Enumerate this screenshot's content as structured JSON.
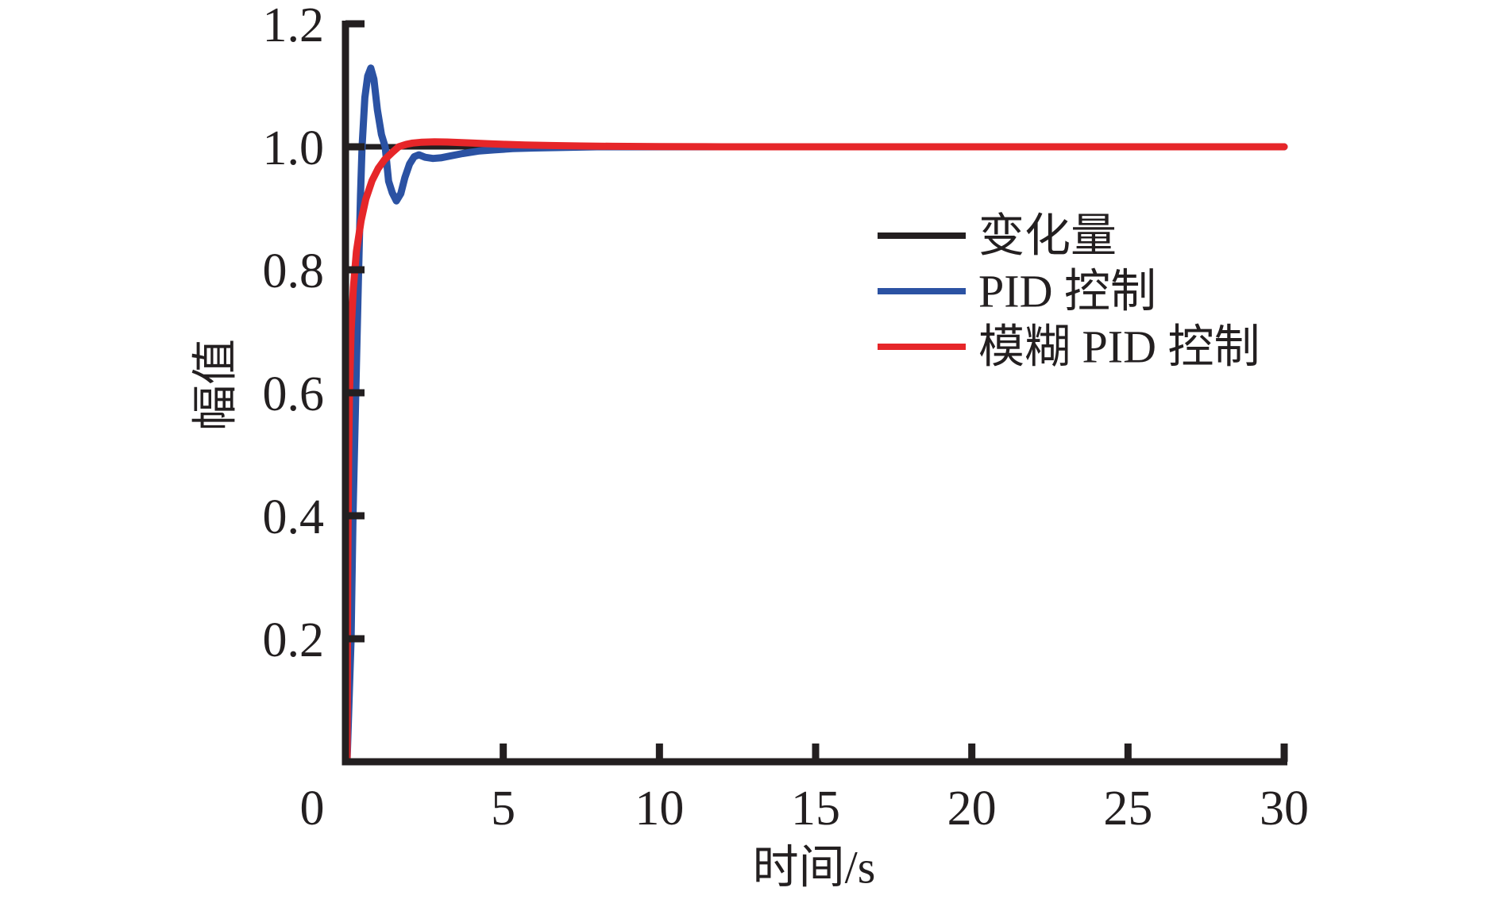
{
  "figure": {
    "background": "#ffffff",
    "axis_color": "#231f20",
    "text_color": "#231f20"
  },
  "chart_data": {
    "type": "line",
    "title": "",
    "xlabel": "时间/s",
    "ylabel": "幅值",
    "xlim": [
      0,
      30
    ],
    "ylim": [
      0,
      1.2
    ],
    "x_ticks": [
      0,
      5,
      10,
      15,
      20,
      25,
      30
    ],
    "x_tick_labels": [
      "0",
      "5",
      "10",
      "15",
      "20",
      "25",
      "30"
    ],
    "y_ticks": [
      0.2,
      0.4,
      0.6,
      0.8,
      1.0,
      1.2
    ],
    "y_tick_labels": [
      "0.2",
      "0.4",
      "0.6",
      "0.8",
      "1.0",
      "1.2"
    ],
    "grid": false,
    "legend_position": "inside-upper-right",
    "series": [
      {
        "name": "变化量",
        "color": "#231f20",
        "stroke_width": 7,
        "points": [
          [
            0,
            1.0
          ],
          [
            30,
            1.0
          ]
        ]
      },
      {
        "name": "PID 控制",
        "color": "#2b52a3",
        "stroke_width": 9,
        "points": [
          [
            0,
            0
          ],
          [
            0.13,
            0.2
          ],
          [
            0.19,
            0.4
          ],
          [
            0.28,
            0.6
          ],
          [
            0.37,
            0.8
          ],
          [
            0.43,
            0.92
          ],
          [
            0.48,
            1.0
          ],
          [
            0.57,
            1.08
          ],
          [
            0.66,
            1.115
          ],
          [
            0.76,
            1.128
          ],
          [
            0.86,
            1.11
          ],
          [
            0.97,
            1.06
          ],
          [
            1.1,
            1.02
          ],
          [
            1.22,
            1.0
          ],
          [
            1.33,
            0.944
          ],
          [
            1.45,
            0.925
          ],
          [
            1.58,
            0.912
          ],
          [
            1.72,
            0.924
          ],
          [
            1.85,
            0.95
          ],
          [
            2.0,
            0.972
          ],
          [
            2.15,
            0.984
          ],
          [
            2.3,
            0.987
          ],
          [
            2.5,
            0.983
          ],
          [
            2.75,
            0.981
          ],
          [
            3.0,
            0.982
          ],
          [
            3.3,
            0.985
          ],
          [
            3.7,
            0.989
          ],
          [
            4.2,
            0.993
          ],
          [
            4.7,
            0.995
          ],
          [
            5.3,
            0.997
          ],
          [
            6.0,
            0.998
          ],
          [
            7.0,
            0.999
          ],
          [
            8.0,
            1.0
          ],
          [
            30,
            1.0
          ]
        ]
      },
      {
        "name": "模糊 PID 控制",
        "color": "#e62629",
        "stroke_width": 9,
        "points": [
          [
            0,
            0
          ],
          [
            0.02,
            0.3
          ],
          [
            0.05,
            0.5
          ],
          [
            0.08,
            0.6
          ],
          [
            0.13,
            0.7
          ],
          [
            0.2,
            0.77
          ],
          [
            0.3,
            0.83
          ],
          [
            0.45,
            0.88
          ],
          [
            0.6,
            0.915
          ],
          [
            0.8,
            0.945
          ],
          [
            1.0,
            0.965
          ],
          [
            1.2,
            0.979
          ],
          [
            1.45,
            0.991
          ],
          [
            1.65,
            1.0
          ],
          [
            1.9,
            1.004
          ],
          [
            2.1,
            1.006
          ],
          [
            2.4,
            1.0075
          ],
          [
            2.8,
            1.008
          ],
          [
            3.2,
            1.0078
          ],
          [
            3.6,
            1.007
          ],
          [
            4.0,
            1.006
          ],
          [
            4.5,
            1.005
          ],
          [
            5.0,
            1.004
          ],
          [
            5.7,
            1.003
          ],
          [
            6.5,
            1.002
          ],
          [
            7.5,
            1.0013
          ],
          [
            8.5,
            1.0008
          ],
          [
            10,
            1.0004
          ],
          [
            12,
            1.0
          ],
          [
            30,
            1.0
          ]
        ]
      }
    ],
    "overshoot_peak": {
      "series": "PID 控制",
      "t": 0.76,
      "value": 1.13
    },
    "undershoot_min": {
      "series": "PID 控制",
      "t": 1.6,
      "value": 0.91
    }
  }
}
